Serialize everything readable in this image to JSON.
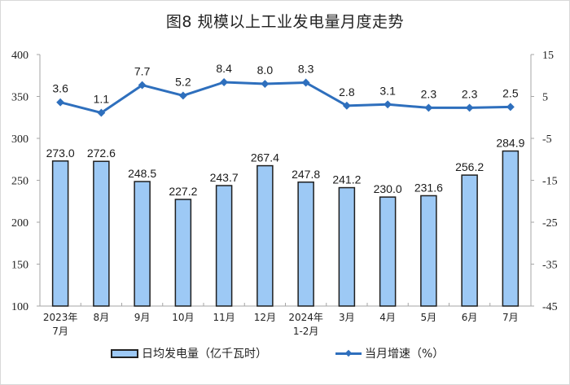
{
  "title": "图8  规模以上工业发电量月度走势",
  "legend": {
    "bar_label": "日均发电量（亿千瓦时）",
    "line_label": "当月增速（%）"
  },
  "colors": {
    "bar_fill": "#9dc9f5",
    "bar_stroke": "#1f1f1f",
    "line": "#2e6fbd",
    "axis": "#a6a6a6",
    "text": "#222222"
  },
  "chart_data": {
    "type": "bar+line",
    "title": "图8  规模以上工业发电量月度走势",
    "categories": [
      "2023年\n7月",
      "8月",
      "9月",
      "10月",
      "11月",
      "12月",
      "2024年\n1-2月",
      "3月",
      "4月",
      "5月",
      "6月",
      "7月"
    ],
    "series": [
      {
        "name": "日均发电量（亿千瓦时）",
        "type": "bar",
        "axis": "left",
        "values": [
          273.0,
          272.6,
          248.5,
          227.2,
          243.7,
          267.4,
          247.8,
          241.2,
          230.0,
          231.6,
          256.2,
          284.9
        ],
        "labels": [
          "273.0",
          "272.6",
          "248.5",
          "227.2",
          "243.7",
          "267.4",
          "247.8",
          "241.2",
          "230.0",
          "231.6",
          "256.2",
          "284.9"
        ]
      },
      {
        "name": "当月增速（%）",
        "type": "line",
        "axis": "right",
        "values": [
          3.6,
          1.1,
          7.7,
          5.2,
          8.4,
          8.0,
          8.3,
          2.8,
          3.1,
          2.3,
          2.3,
          2.5
        ],
        "labels": [
          "3.6",
          "1.1",
          "7.7",
          "5.2",
          "8.4",
          "8.0",
          "8.3",
          "2.8",
          "3.1",
          "2.3",
          "2.3",
          "2.5"
        ]
      }
    ],
    "left_axis": {
      "ylim": [
        100,
        400
      ],
      "ticks": [
        "400",
        "350",
        "300",
        "250",
        "200",
        "150",
        "100"
      ]
    },
    "right_axis": {
      "ylim": [
        -45,
        15
      ],
      "ticks": [
        "15",
        "5",
        "-5",
        "-15",
        "-25",
        "-35",
        "-45"
      ]
    },
    "grid": false,
    "legend_position": "bottom"
  }
}
